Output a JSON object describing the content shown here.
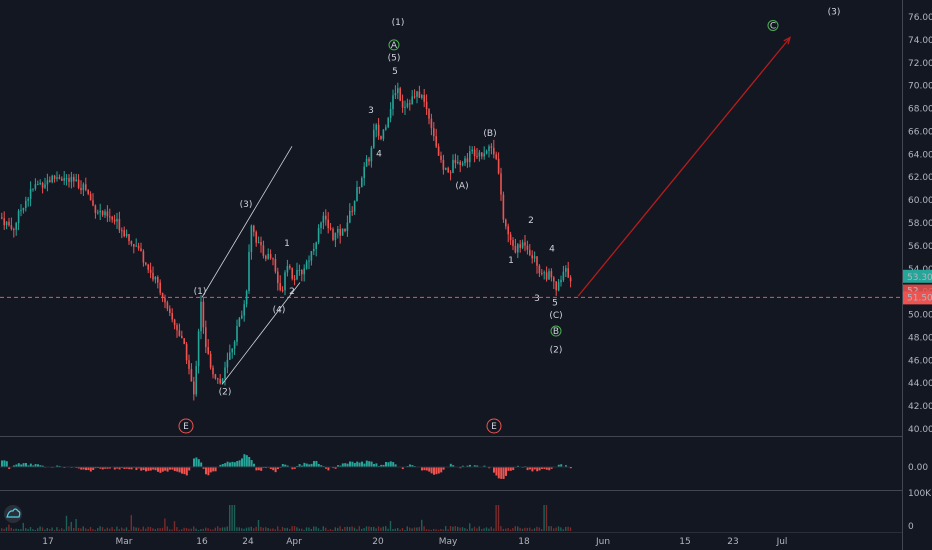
{
  "chart_data": {
    "type": "candlestick",
    "price_axis": {
      "ticks": [
        "76.00",
        "74.00",
        "72.00",
        "70.00",
        "68.00",
        "66.00",
        "64.00",
        "62.00",
        "60.00",
        "58.00",
        "56.00",
        "54.00",
        "52.00",
        "50.00",
        "48.00",
        "46.00",
        "44.00",
        "42.00",
        "40.00"
      ],
      "ylim": [
        38.5,
        77.5
      ]
    },
    "current_price": {
      "label": "53.30",
      "value": 53.3,
      "color": "#26a69a"
    },
    "support_line": {
      "label": "51.50",
      "value": 51.5,
      "color": "#ef5350"
    },
    "hidden_label": {
      "label": "52.__",
      "color": "#ef5350"
    },
    "time_axis": [
      "17",
      "Mar",
      "16",
      "24",
      "Apr",
      "20",
      "May",
      "18",
      "Jun",
      "15",
      "23",
      "Jul"
    ],
    "price_series": [
      [
        0,
        58.5
      ],
      [
        12,
        57.4
      ],
      [
        22,
        59.6
      ],
      [
        34,
        61.2
      ],
      [
        44,
        61.6
      ],
      [
        58,
        62.1
      ],
      [
        70,
        61.6
      ],
      [
        84,
        61.2
      ],
      [
        92,
        59.5
      ],
      [
        104,
        58.6
      ],
      [
        116,
        58.0
      ],
      [
        130,
        56.6
      ],
      [
        140,
        55.4
      ],
      [
        150,
        53.6
      ],
      [
        160,
        52.2
      ],
      [
        166,
        50.2
      ],
      [
        176,
        48.9
      ],
      [
        186,
        46.3
      ],
      [
        193,
        42.8
      ],
      [
        200,
        51.5
      ],
      [
        204,
        47.2
      ],
      [
        212,
        45.1
      ],
      [
        220,
        43.9
      ],
      [
        230,
        46.8
      ],
      [
        240,
        49.9
      ],
      [
        245,
        51.3
      ],
      [
        250,
        58.2
      ],
      [
        256,
        56.4
      ],
      [
        262,
        55.3
      ],
      [
        272,
        54.9
      ],
      [
        280,
        51.6
      ],
      [
        286,
        54.8
      ],
      [
        292,
        53.3
      ],
      [
        300,
        53.6
      ],
      [
        310,
        55.3
      ],
      [
        322,
        58.4
      ],
      [
        332,
        56.9
      ],
      [
        342,
        57.2
      ],
      [
        350,
        58.9
      ],
      [
        360,
        61.9
      ],
      [
        370,
        64.1
      ],
      [
        374,
        66.5
      ],
      [
        380,
        65.3
      ],
      [
        390,
        68.3
      ],
      [
        396,
        70.0
      ],
      [
        402,
        68.3
      ],
      [
        412,
        68.9
      ],
      [
        420,
        69.3
      ],
      [
        430,
        66.9
      ],
      [
        440,
        63.1
      ],
      [
        448,
        62.3
      ],
      [
        456,
        63.9
      ],
      [
        462,
        63.2
      ],
      [
        472,
        64.3
      ],
      [
        482,
        64.2
      ],
      [
        490,
        64.7
      ],
      [
        496,
        63.9
      ],
      [
        502,
        58.5
      ],
      [
        510,
        56.2
      ],
      [
        516,
        55.6
      ],
      [
        524,
        56.4
      ],
      [
        532,
        55.1
      ],
      [
        540,
        53.7
      ],
      [
        548,
        53.4
      ],
      [
        556,
        52.1
      ],
      [
        564,
        53.8
      ],
      [
        570,
        53.3
      ]
    ],
    "projection": {
      "from": [
        578,
        51.6
      ],
      "to": [
        790,
        74.2
      ],
      "color": "#b71c1c"
    },
    "channel_lines": [
      {
        "from": [
          202,
          51.5
        ],
        "to": [
          292,
          64.7
        ]
      },
      {
        "from": [
          222,
          43.9
        ],
        "to": [
          300,
          52.8
        ]
      }
    ],
    "wave_labels": [
      {
        "text": "(1)",
        "x": 200,
        "y": 51.8,
        "color": "#ffffff"
      },
      {
        "text": "(2)",
        "x": 225,
        "y": 43.0,
        "color": "#4caf50"
      },
      {
        "text": "(3)",
        "x": 246,
        "y": 59.4,
        "color": "#4caf50"
      },
      {
        "text": "(4)",
        "x": 279,
        "y": 50.2,
        "color": "#4caf50"
      },
      {
        "text": "1",
        "x": 287,
        "y": 56.0,
        "color": "#4caf50"
      },
      {
        "text": "2",
        "x": 292,
        "y": 51.8,
        "color": "#4caf50"
      },
      {
        "text": "3",
        "x": 371,
        "y": 67.6,
        "color": "#4caf50"
      },
      {
        "text": "4",
        "x": 379,
        "y": 63.8,
        "color": "#4caf50"
      },
      {
        "text": "5",
        "x": 395,
        "y": 71.0,
        "color": "#4caf50"
      },
      {
        "text": "(5)",
        "x": 394,
        "y": 72.2,
        "color": "#4caf50"
      },
      {
        "text": "A",
        "x": 394,
        "y": 73.3,
        "color": "#4caf50",
        "circled": true
      },
      {
        "text": "(1)",
        "x": 398,
        "y": 75.3,
        "color": "#f0b27a"
      },
      {
        "text": "(A)",
        "x": 462,
        "y": 61.0,
        "color": "#d1d4dc"
      },
      {
        "text": "(B)",
        "x": 490,
        "y": 65.6,
        "color": "#f0b27a"
      },
      {
        "text": "1",
        "x": 511,
        "y": 54.5,
        "color": "#4caf50"
      },
      {
        "text": "2",
        "x": 531,
        "y": 58.0,
        "color": "#4caf50"
      },
      {
        "text": "3",
        "x": 537,
        "y": 51.2,
        "color": "#4caf50"
      },
      {
        "text": "4",
        "x": 552,
        "y": 55.5,
        "color": "#4caf50"
      },
      {
        "text": "5",
        "x": 555,
        "y": 50.8,
        "color": "#4caf50"
      },
      {
        "text": "(C)",
        "x": 556,
        "y": 49.7,
        "color": "#d1d4dc"
      },
      {
        "text": "B",
        "x": 556,
        "y": 48.3,
        "color": "#4caf50",
        "circled": true
      },
      {
        "text": "(2)",
        "x": 556,
        "y": 46.7,
        "color": "#f0b27a"
      },
      {
        "text": "C",
        "x": 773,
        "y": 75.0,
        "color": "#4caf50",
        "circled": true
      },
      {
        "text": "(3)",
        "x": 834,
        "y": 76.2,
        "color": "#f0b27a"
      }
    ],
    "event_markers": [
      {
        "text": "E",
        "x": 186
      },
      {
        "text": "E",
        "x": 494
      }
    ],
    "oscillator": {
      "tick": "0.00",
      "color_pos": "#26a69a",
      "color_neg": "#ef5350"
    },
    "volume": {
      "ticks": [
        "100K",
        "0"
      ]
    }
  }
}
